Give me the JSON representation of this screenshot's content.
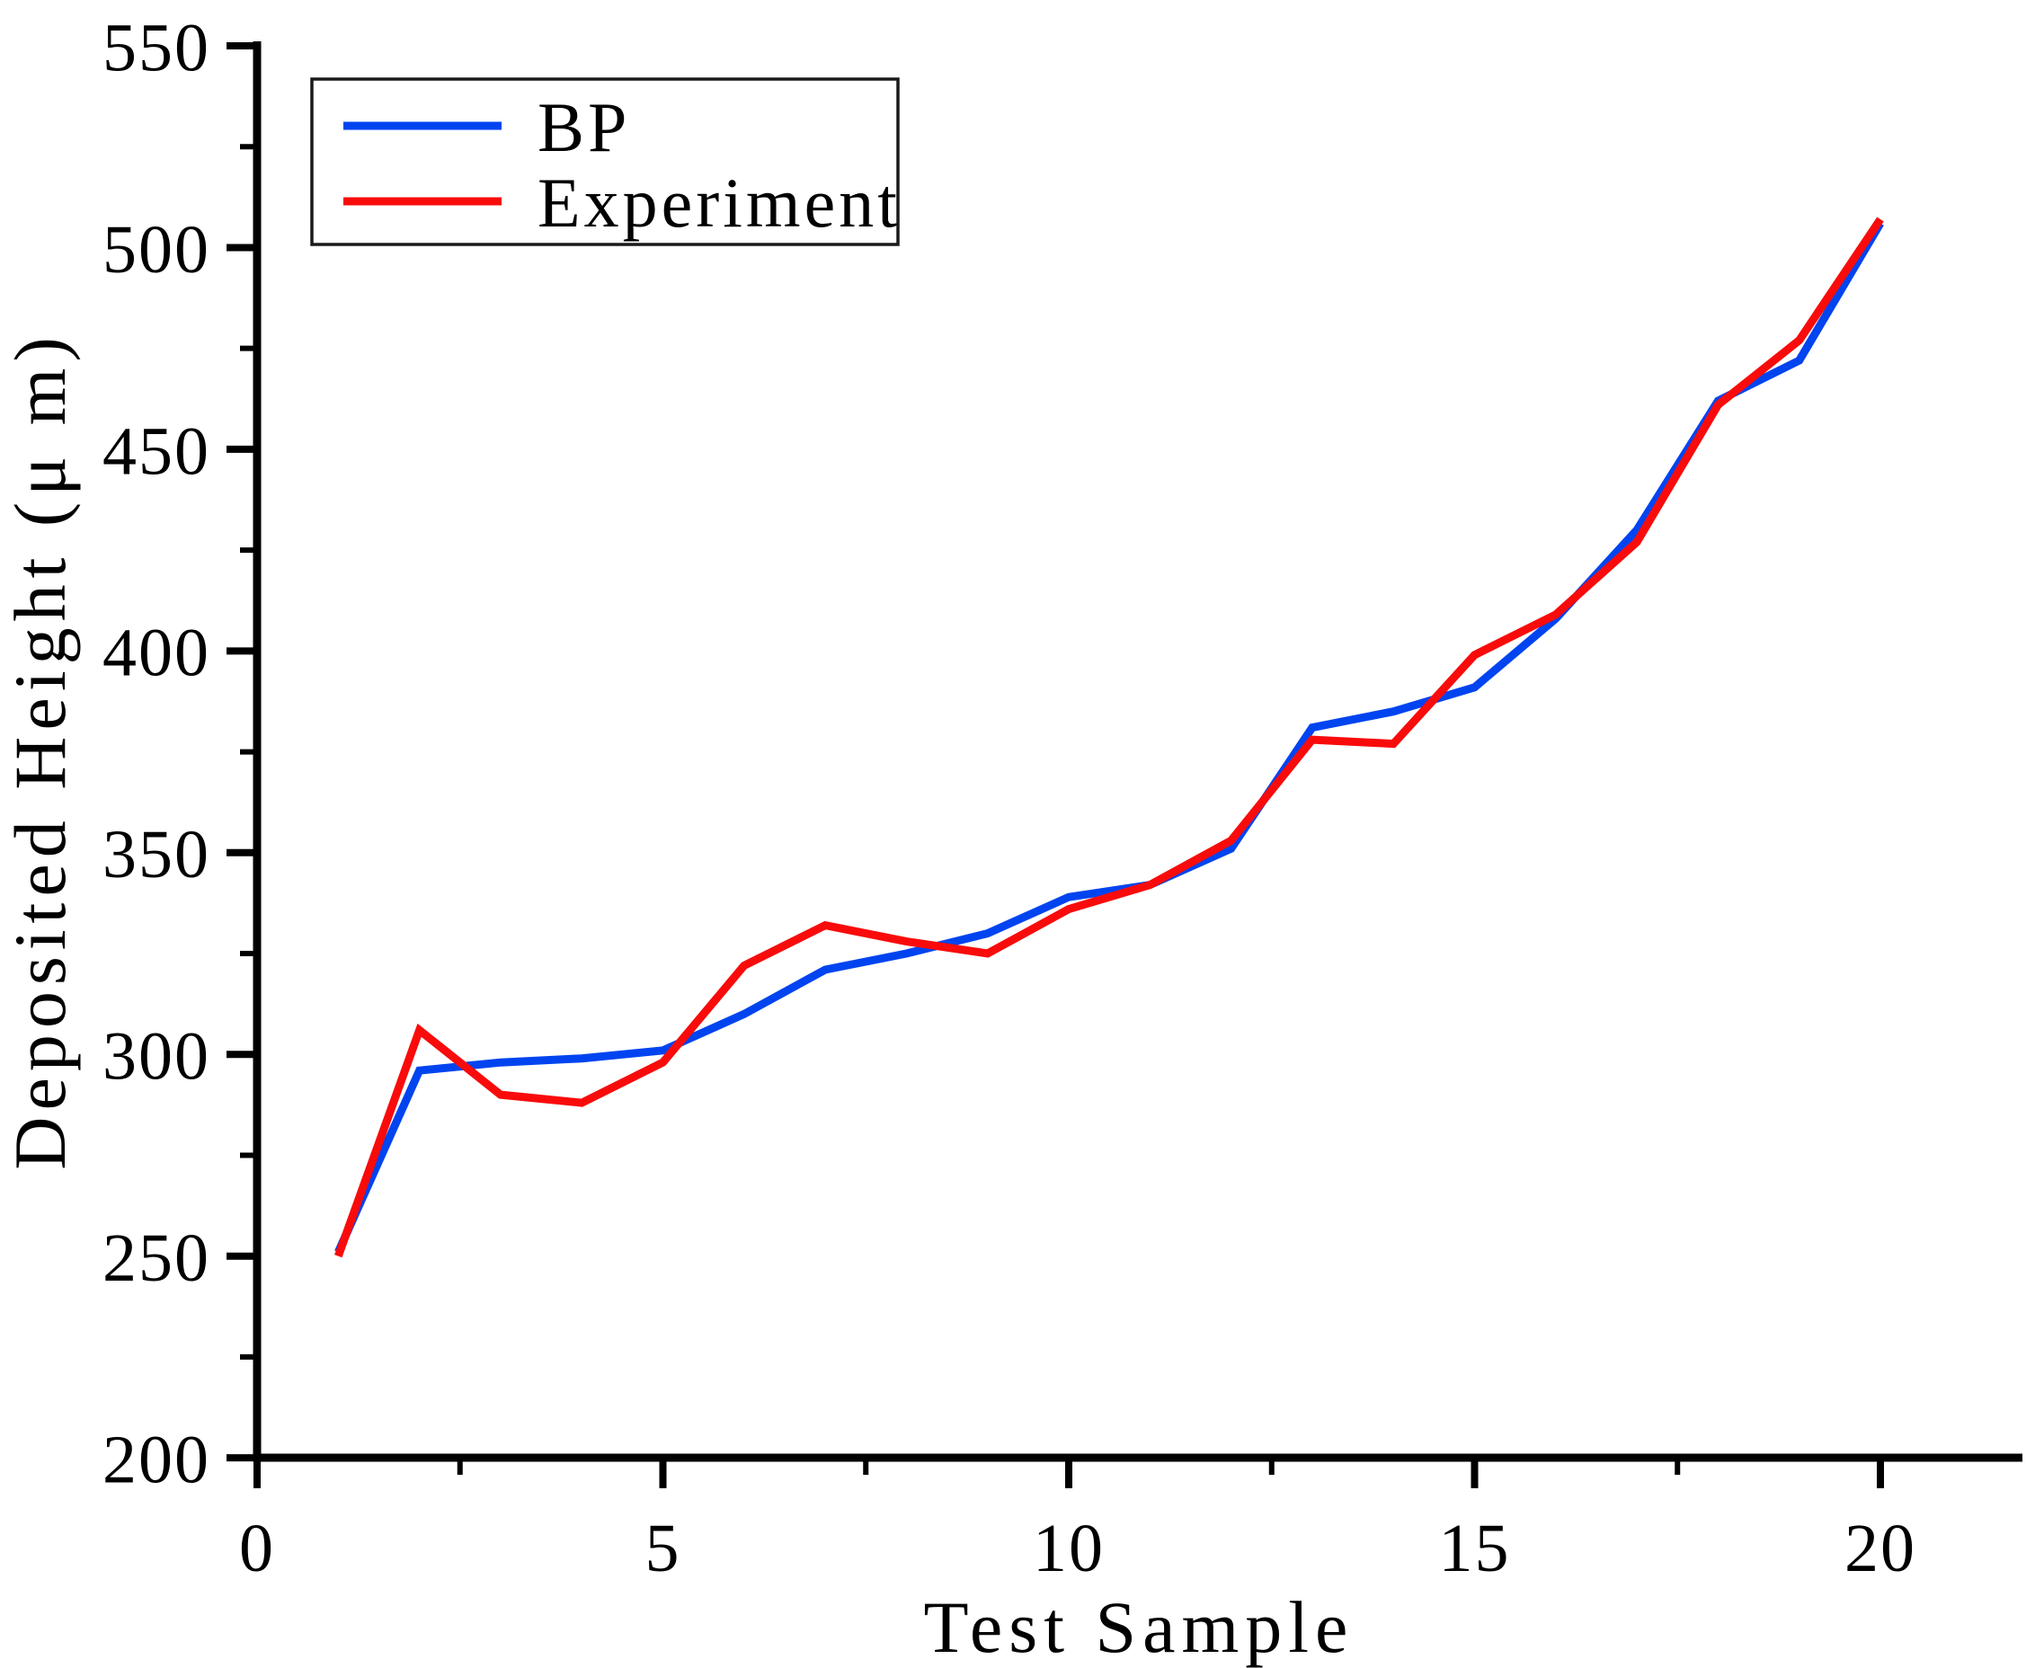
{
  "figure": {
    "background": "#ffffff",
    "axis_color": "#000000"
  },
  "chart_data": {
    "type": "line",
    "title": "",
    "xlabel": "Test Sample",
    "ylabel": "Deposited Height (μ m)",
    "x": [
      1,
      2,
      3,
      4,
      5,
      6,
      7,
      8,
      9,
      10,
      11,
      12,
      13,
      14,
      15,
      16,
      17,
      18,
      19,
      20
    ],
    "series": [
      {
        "name": "BP",
        "color": "#0044F0",
        "values": [
          251,
          296,
          298,
          299,
          301,
          310,
          321,
          325,
          330,
          339,
          342,
          351,
          381,
          385,
          391,
          408,
          430,
          462,
          472,
          506
        ]
      },
      {
        "name": "Experiment",
        "color": "#F90B0B",
        "values": [
          250,
          306,
          290,
          288,
          298,
          322,
          332,
          328,
          325,
          336,
          342,
          353,
          378,
          377,
          399,
          409,
          427,
          461,
          477,
          507
        ]
      }
    ],
    "xlim": [
      0,
      21.75
    ],
    "ylim": [
      200,
      550
    ],
    "x_major_ticks": [
      0,
      5,
      10,
      15,
      20
    ],
    "x_minor_ticks": [
      2.5,
      7.5,
      12.5,
      17.5
    ],
    "y_major_ticks": [
      200,
      250,
      300,
      350,
      400,
      450,
      500,
      550
    ],
    "y_minor_ticks": [
      225,
      275,
      325,
      375,
      425,
      475,
      525
    ],
    "grid": false,
    "legend_position": "upper-left"
  },
  "legend": {
    "entries": [
      {
        "label": "BP",
        "color": "#0044F0"
      },
      {
        "label": "Experiment",
        "color": "#F90B0B"
      }
    ]
  }
}
